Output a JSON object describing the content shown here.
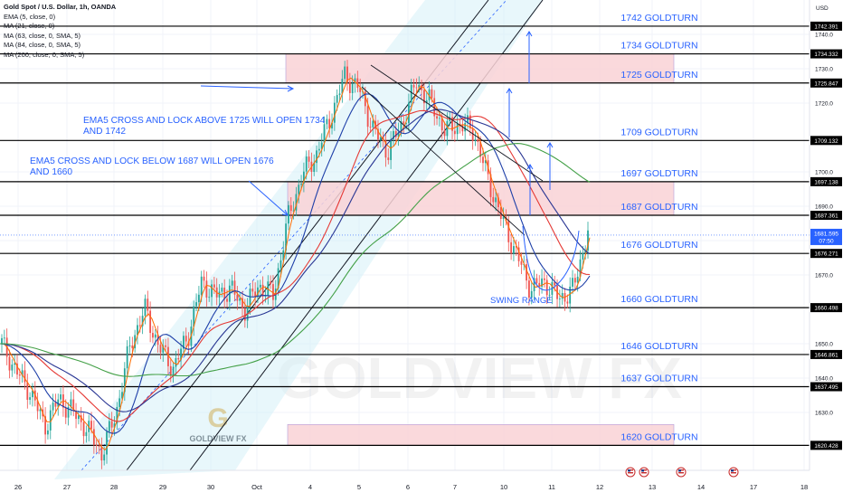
{
  "header": {
    "symbol": "Gold Spot / U.S. Dollar, 1h, OANDA",
    "indicators": [
      "EMA (5, close, 0)",
      "MA (21, close, 0)",
      "MA (63, close, 0, SMA, 5)",
      "MA (84, close, 0, SMA, 5)",
      "MA (200, close, 0, SMA, 5)"
    ],
    "currency": "USD"
  },
  "watermark": {
    "main": "GOLDVIEW FX",
    "logo_text": "GOLDVIEW FX",
    "logo_g": "G"
  },
  "colors": {
    "candle_up": "#26a69a",
    "candle_down": "#ef5350",
    "ema5": "#ff6d00",
    "ma21": "#1e3fa8",
    "ma63": "#e53935",
    "ma84": "#283593",
    "ma200": "#43a047",
    "channel_fill": "#d6f0f7",
    "zone_fill": "#f9d2d6",
    "annotation": "#2962ff"
  },
  "chart_data": {
    "type": "candlestick",
    "title": "Gold Spot / U.S. Dollar, 1h, OANDA",
    "ylim": [
      1612,
      1750
    ],
    "y_ticks": [
      1630.0,
      1640.0,
      1650.0,
      1670.0,
      1680.0,
      1690.0,
      1700.0,
      1720.0,
      1730.0,
      1740.0
    ],
    "x_ticks": [
      "26",
      "27",
      "28",
      "29",
      "30",
      "Oct",
      "4",
      "5",
      "6",
      "7",
      "10",
      "11",
      "12",
      "13",
      "14",
      "17",
      "18"
    ],
    "close_path": [
      1650,
      1642,
      1636,
      1626,
      1634,
      1630,
      1625,
      1618,
      1630,
      1650,
      1660,
      1649,
      1643,
      1652,
      1668,
      1664,
      1666,
      1660,
      1667,
      1664,
      1686,
      1699,
      1705,
      1716,
      1728,
      1724,
      1712,
      1706,
      1714,
      1726,
      1720,
      1712,
      1714,
      1712,
      1698,
      1686,
      1676,
      1666,
      1668,
      1663,
      1666,
      1683
    ],
    "last_price": "1681.595",
    "countdown": "07:50",
    "levels": [
      {
        "value": 1742.391,
        "label": "1742 GOLDTURN",
        "price_label": "1742.391"
      },
      {
        "value": 1734.332,
        "label": "1734 GOLDTURN",
        "price_label": "1734.332"
      },
      {
        "value": 1725.847,
        "label": "1725 GOLDTURN",
        "price_label": "1725.847"
      },
      {
        "value": 1709.132,
        "label": "1709 GOLDTURN",
        "price_label": "1709.132"
      },
      {
        "value": 1697.138,
        "label": "1697 GOLDTURN",
        "price_label": "1697.138"
      },
      {
        "value": 1687.361,
        "label": "1687 GOLDTURN",
        "price_label": "1687.361"
      },
      {
        "value": 1676.271,
        "label": "1676 GOLDTURN",
        "price_label": "1676.271"
      },
      {
        "value": 1660.498,
        "label": "1660 GOLDTURN",
        "price_label": "1660.498"
      },
      {
        "value": 1646.861,
        "label": "1646 GOLDTURN",
        "price_label": "1646.861"
      },
      {
        "value": 1637.495,
        "label": "1637 GOLDTURN",
        "price_label": "1637.495"
      },
      {
        "value": 1620.428,
        "label": "1620 GOLDTURN",
        "price_label": "1620.428"
      }
    ],
    "zones": [
      {
        "from": 1725.847,
        "to": 1734.332
      },
      {
        "from": 1687.361,
        "to": 1697.138
      },
      {
        "from": 1620.428,
        "to": 1626.5
      }
    ],
    "annotations": [
      "EMA5 CROSS AND LOCK ABOVE 1725 WILL OPEN 1734 AND 1742",
      "EMA5 CROSS AND LOCK BELOW 1687 WILL OPEN 1676 AND 1660",
      "SWING RANGE"
    ]
  }
}
